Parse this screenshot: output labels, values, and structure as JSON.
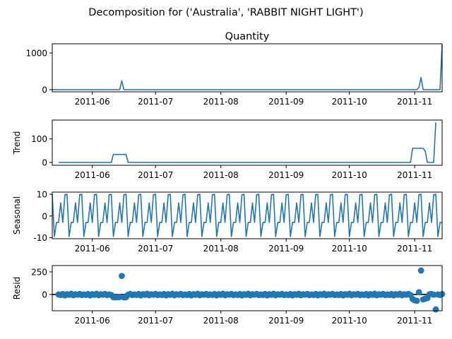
{
  "title": "Decomposition for ('Australia', 'RABBIT NIGHT LIGHT')",
  "x_tick_labels": [
    "2011-06",
    "2011-07",
    "2011-08",
    "2011-09",
    "2011-10",
    "2011-11"
  ],
  "colors": {
    "line": "#1f77b4",
    "axis": "#000000",
    "background": "#ffffff"
  },
  "chart_data": [
    {
      "type": "line",
      "title": "Quantity",
      "ylabel": "",
      "xlim": [
        "2011-05-13",
        "2011-11-14"
      ],
      "ylim": [
        -60,
        1250
      ],
      "yticks": [
        0,
        1000
      ],
      "spike_points": [
        {
          "x": "2011-06-14",
          "y": 0
        },
        {
          "x": "2011-06-15",
          "y": 240
        },
        {
          "x": "2011-06-16",
          "y": 0
        },
        {
          "x": "2011-11-02",
          "y": 0
        },
        {
          "x": "2011-11-03",
          "y": 60
        },
        {
          "x": "2011-11-04",
          "y": 330
        },
        {
          "x": "2011-11-05",
          "y": 0
        },
        {
          "x": "2011-11-13",
          "y": 0
        },
        {
          "x": "2011-11-14",
          "y": 1230
        }
      ],
      "baseline": 0
    },
    {
      "type": "line",
      "title": "",
      "ylabel": "Trend",
      "xlim": [
        "2011-05-13",
        "2011-11-14"
      ],
      "ylim": [
        -12,
        180
      ],
      "yticks": [
        0,
        100
      ],
      "points": [
        {
          "x": "2011-05-16",
          "y": 0
        },
        {
          "x": "2011-06-10",
          "y": 0
        },
        {
          "x": "2011-06-11",
          "y": 34
        },
        {
          "x": "2011-06-17",
          "y": 34
        },
        {
          "x": "2011-06-18",
          "y": 0
        },
        {
          "x": "2011-10-30",
          "y": 0
        },
        {
          "x": "2011-10-31",
          "y": 60
        },
        {
          "x": "2011-11-05",
          "y": 60
        },
        {
          "x": "2011-11-06",
          "y": 48
        },
        {
          "x": "2011-11-07",
          "y": 0
        },
        {
          "x": "2011-11-10",
          "y": 0
        },
        {
          "x": "2011-11-11",
          "y": 170
        }
      ]
    },
    {
      "type": "line",
      "title": "",
      "ylabel": "Seasonal",
      "xlim": [
        "2011-05-13",
        "2011-11-14"
      ],
      "ylim": [
        -10.5,
        11
      ],
      "yticks": [
        -10,
        0,
        10
      ],
      "period_days": 7,
      "pattern": [
        10,
        -9.5,
        -3,
        -3,
        6,
        -3,
        9.8
      ],
      "start": "2011-05-13",
      "end": "2011-11-14"
    },
    {
      "type": "scatter",
      "title": "",
      "ylabel": "Resid",
      "xlim": [
        "2011-05-13",
        "2011-11-14"
      ],
      "ylim": [
        -180,
        320
      ],
      "yticks": [
        0,
        250
      ],
      "zero_line": true,
      "start": "2011-05-16",
      "end": "2011-11-14",
      "typical_values": [
        0,
        -5,
        5,
        -10,
        3,
        -3,
        8,
        -8,
        2,
        -2,
        6,
        -6
      ],
      "exceptions": [
        {
          "x": "2011-06-11",
          "y": -30
        },
        {
          "x": "2011-06-12",
          "y": -32
        },
        {
          "x": "2011-06-13",
          "y": -30
        },
        {
          "x": "2011-06-14",
          "y": -28
        },
        {
          "x": "2011-06-15",
          "y": 205
        },
        {
          "x": "2011-06-16",
          "y": -32
        },
        {
          "x": "2011-06-17",
          "y": -30
        },
        {
          "x": "2011-10-31",
          "y": -50
        },
        {
          "x": "2011-11-01",
          "y": -65
        },
        {
          "x": "2011-11-02",
          "y": -70
        },
        {
          "x": "2011-11-03",
          "y": 25
        },
        {
          "x": "2011-11-04",
          "y": 265
        },
        {
          "x": "2011-11-05",
          "y": -55
        },
        {
          "x": "2011-11-06",
          "y": -45
        },
        {
          "x": "2011-11-07",
          "y": -40
        },
        {
          "x": "2011-11-08",
          "y": 2
        },
        {
          "x": "2011-11-09",
          "y": 5
        },
        {
          "x": "2011-11-10",
          "y": -2
        },
        {
          "x": "2011-11-11",
          "y": -165
        }
      ]
    }
  ]
}
